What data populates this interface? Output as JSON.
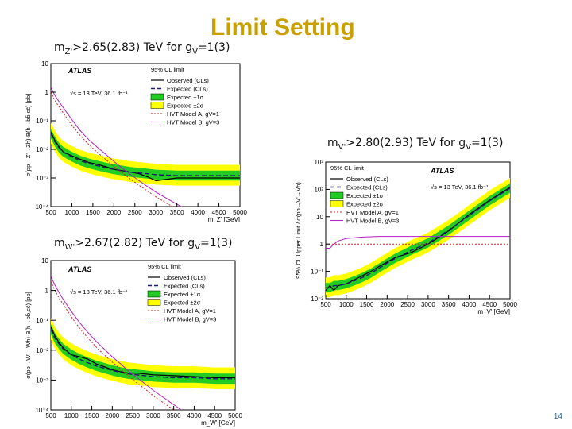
{
  "slide": {
    "title": "Limit Setting",
    "page_number": "14"
  },
  "captions": {
    "z": {
      "pre": "m",
      "sub1": "Z'",
      "mid": ">2.65(2.83) TeV for g",
      "sub2": "V",
      "post": "=1(3)"
    },
    "w": {
      "pre": "m",
      "sub1": "W'",
      "mid": ">2.67(2.82) TeV for g",
      "sub2": "V",
      "post": "=1(3)"
    },
    "v": {
      "pre": "m",
      "sub1": "V'",
      "mid": ">2.80(2.93) TeV for g",
      "sub2": "V",
      "post": "=1(3)"
    }
  },
  "chart_data": [
    {
      "id": "z",
      "type": "line",
      "title": "",
      "experiment": "ATLAS",
      "energy_lumi": "√s = 13 TeV, 36.1 fb⁻¹",
      "xlabel": "m_Z' [GeV]",
      "ylabel": "σ(pp→Z'→Zh)·B(h→bb̄,cc̄) [pb]",
      "xlim": [
        500,
        5000
      ],
      "ylim_log10": [
        -4,
        1
      ],
      "xticks": [
        "500",
        "1000",
        "1500",
        "2000",
        "2500",
        "3000",
        "3500",
        "4000",
        "4500",
        "5000"
      ],
      "yticks": [
        "10⁻⁴",
        "10⁻³",
        "10⁻²",
        "10⁻¹",
        "1",
        "10"
      ],
      "legend_position": "top-right",
      "legend_header": "95% CL limit",
      "legend": [
        "Observed (CLs)",
        "Expected (CLs)",
        "Expected ±1σ",
        "Expected ±2σ",
        "HVT Model A, gV=1",
        "HVT Model B, gV=3"
      ],
      "x": [
        500,
        600,
        700,
        800,
        1000,
        1200,
        1400,
        1600,
        1800,
        2000,
        2200,
        2400,
        2600,
        2800,
        3000,
        3500,
        4000,
        4500,
        5000
      ],
      "series": [
        {
          "name": "Observed (CLs)",
          "values": [
            0.04,
            0.02,
            0.012,
            0.008,
            0.006,
            0.0045,
            0.0035,
            0.003,
            0.0025,
            0.002,
            0.0018,
            0.0016,
            0.0014,
            0.0011,
            0.0008,
            0.001,
            0.001,
            0.001,
            0.001
          ]
        },
        {
          "name": "Expected (CLs)",
          "values": [
            0.035,
            0.018,
            0.011,
            0.008,
            0.0055,
            0.004,
            0.0032,
            0.0027,
            0.0023,
            0.002,
            0.0018,
            0.0016,
            0.0015,
            0.0014,
            0.0013,
            0.0012,
            0.0012,
            0.0012,
            0.0012
          ]
        },
        {
          "name": "HVT Model A, gV=1",
          "values": [
            1.0,
            0.5,
            0.3,
            0.18,
            0.07,
            0.03,
            0.015,
            0.008,
            0.0045,
            0.0025,
            0.0015,
            0.0009,
            0.00055,
            0.00035,
            0.00022,
            8e-05,
            3e-05,
            1.2e-05,
            6e-06
          ]
        },
        {
          "name": "HVT Model B, gV=3",
          "values": [
            1.5,
            0.75,
            0.45,
            0.28,
            0.11,
            0.045,
            0.022,
            0.012,
            0.0068,
            0.0038,
            0.0022,
            0.0013,
            0.0008,
            0.0005,
            0.00032,
            0.00012,
            5e-05,
            2e-05,
            1e-05
          ]
        }
      ]
    },
    {
      "id": "w",
      "type": "line",
      "title": "",
      "experiment": "ATLAS",
      "energy_lumi": "√s = 13 TeV, 36.1 fb⁻¹",
      "xlabel": "m_W' [GeV]",
      "ylabel": "σ(pp→W'→Wh)·B(h→bb̄,cc̄) [pb]",
      "xlim": [
        500,
        5000
      ],
      "ylim_log10": [
        -4,
        1
      ],
      "xticks": [
        "500",
        "1000",
        "1500",
        "2000",
        "2500",
        "3000",
        "3500",
        "4000",
        "4500",
        "5000"
      ],
      "yticks": [
        "10⁻⁴",
        "10⁻³",
        "10⁻²",
        "10⁻¹",
        "1",
        "10"
      ],
      "legend_position": "top-right",
      "legend_header": "95% CL limit",
      "legend": [
        "Observed (CLs)",
        "Expected (CLs)",
        "Expected ±1σ",
        "Expected ±2σ",
        "HVT Model A, gV=1",
        "HVT Model B, gV=3"
      ],
      "x": [
        500,
        600,
        700,
        800,
        1000,
        1200,
        1400,
        1600,
        1800,
        2000,
        2200,
        2400,
        2600,
        2800,
        3000,
        3500,
        4000,
        4500,
        5000
      ],
      "series": [
        {
          "name": "Observed (CLs)",
          "values": [
            0.06,
            0.03,
            0.018,
            0.012,
            0.007,
            0.006,
            0.005,
            0.0035,
            0.0028,
            0.0022,
            0.0019,
            0.0017,
            0.0017,
            0.0016,
            0.0015,
            0.0014,
            0.0013,
            0.0012,
            0.0012
          ]
        },
        {
          "name": "Expected (CLs)",
          "values": [
            0.05,
            0.025,
            0.016,
            0.011,
            0.007,
            0.005,
            0.0038,
            0.003,
            0.0025,
            0.0021,
            0.0018,
            0.0016,
            0.0015,
            0.0014,
            0.0013,
            0.0012,
            0.0012,
            0.0011,
            0.0011
          ]
        },
        {
          "name": "HVT Model A, gV=1",
          "values": [
            2.0,
            1.0,
            0.55,
            0.35,
            0.13,
            0.055,
            0.026,
            0.013,
            0.007,
            0.004,
            0.0023,
            0.0014,
            0.0008,
            0.0005,
            0.0003,
            0.0001,
            3e-05,
            1.2e-05,
            5e-06
          ]
        },
        {
          "name": "HVT Model B, gV=3",
          "values": [
            3.0,
            1.5,
            0.85,
            0.5,
            0.2,
            0.085,
            0.04,
            0.02,
            0.011,
            0.006,
            0.0035,
            0.002,
            0.0012,
            0.00075,
            0.00045,
            0.00015,
            5e-05,
            2e-05,
            8e-06
          ]
        }
      ]
    },
    {
      "id": "v",
      "type": "line",
      "title": "",
      "experiment": "ATLAS",
      "energy_lumi": "√s = 13 TeV, 36.1 fb⁻¹",
      "xlabel": "m_V' [GeV]",
      "ylabel": "95% CL Upper Limit / σ(pp→V'→Vh)",
      "xlim": [
        500,
        5000
      ],
      "ylim_log10": [
        -2,
        3
      ],
      "xticks": [
        "500",
        "1000",
        "1500",
        "2000",
        "2500",
        "3000",
        "3500",
        "4000",
        "4500",
        "5000"
      ],
      "yticks": [
        "10⁻²",
        "10⁻¹",
        "1",
        "10",
        "10²",
        "10³"
      ],
      "legend_position": "top-left",
      "legend_header": "95% CL limit",
      "legend": [
        "Observed (CLs)",
        "Expected (CLs)",
        "Expected ±1σ",
        "Expected ±2σ",
        "HVT Model A, gV=1",
        "HVT Model B, gV=3"
      ],
      "x": [
        500,
        600,
        700,
        800,
        1000,
        1200,
        1400,
        1600,
        1800,
        2000,
        2200,
        2400,
        2600,
        2800,
        3000,
        3500,
        4000,
        4500,
        5000
      ],
      "series": [
        {
          "name": "Observed (CLs)",
          "values": [
            0.02,
            0.03,
            0.02,
            0.03,
            0.035,
            0.05,
            0.07,
            0.1,
            0.15,
            0.22,
            0.32,
            0.4,
            0.5,
            0.7,
            1.0,
            3.0,
            12.0,
            40.0,
            120.0
          ]
        },
        {
          "name": "Expected (CLs)",
          "values": [
            0.025,
            0.025,
            0.03,
            0.03,
            0.035,
            0.045,
            0.06,
            0.085,
            0.13,
            0.2,
            0.3,
            0.42,
            0.6,
            0.8,
            1.1,
            3.2,
            11.0,
            38.0,
            110.0
          ]
        },
        {
          "name": "HVT Model A, gV=1",
          "values": [
            1,
            1,
            1,
            1,
            1,
            1,
            1,
            1,
            1,
            1,
            1,
            1,
            1,
            1,
            1,
            1,
            1,
            1,
            1
          ]
        },
        {
          "name": "HVT Model B, gV=3",
          "values": [
            0.7,
            0.7,
            1.0,
            1.3,
            1.6,
            1.7,
            1.8,
            1.85,
            1.9,
            1.9,
            1.9,
            1.9,
            1.9,
            1.9,
            1.9,
            1.9,
            1.9,
            1.9,
            1.9
          ]
        }
      ]
    }
  ],
  "colors": {
    "title": "#c8a000",
    "observed": "#000000",
    "expected": "#1a1a6e",
    "band1": "#22cc22",
    "band2": "#ffff00",
    "hvtA": "#cc2222",
    "hvtB": "#b020c0",
    "page": "#1f5fa8"
  }
}
